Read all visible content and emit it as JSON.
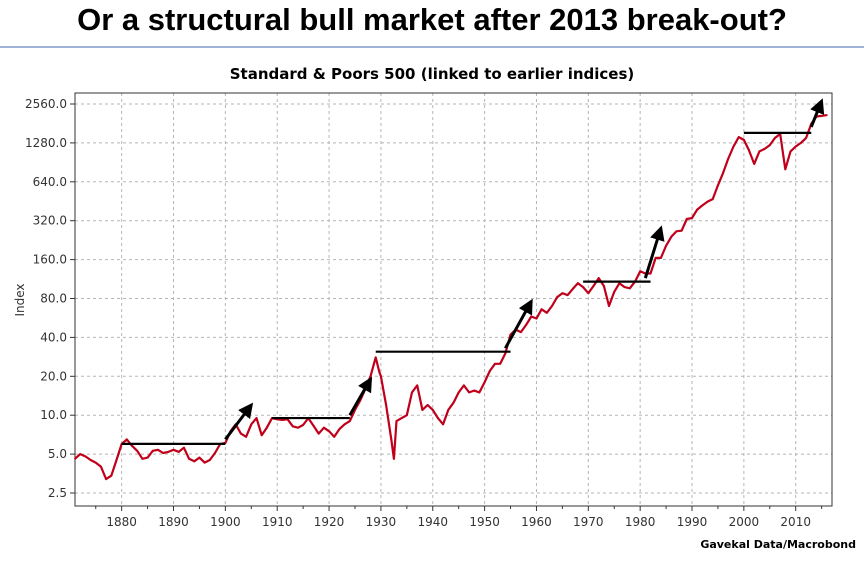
{
  "headline": "Or a structural bull market after 2013 break-out?",
  "source": "Gavekal Data/Macrobond",
  "colors": {
    "line": "#c0001a",
    "annotation": "#000000",
    "grid": "#b5b5b5",
    "rule": "#9fb3d6"
  },
  "chart_data": {
    "type": "line",
    "title": "Standard & Poors 500  (linked to earlier indices)",
    "xlabel": "",
    "ylabel": "Index",
    "yscale": "log2",
    "xlim": [
      1871,
      2017
    ],
    "ylim": [
      2.5,
      2560
    ],
    "grid": true,
    "legend": "none",
    "xticks": [
      "1880",
      "1890",
      "1900",
      "1910",
      "1920",
      "1930",
      "1940",
      "1950",
      "1960",
      "1970",
      "1980",
      "1990",
      "2000",
      "2010"
    ],
    "yticks": [
      "2.5",
      "5.0",
      "10.0",
      "20.0",
      "40.0",
      "80.0",
      "160.0",
      "320.0",
      "640.0",
      "1280.0",
      "2560.0"
    ],
    "series": [
      {
        "x": [
          1871,
          1872,
          1873,
          1874,
          1875,
          1876,
          1877,
          1878,
          1879,
          1880,
          1881,
          1882,
          1883,
          1884,
          1885,
          1886,
          1887,
          1888,
          1889,
          1890,
          1891,
          1892,
          1893,
          1894,
          1895,
          1896,
          1897,
          1898,
          1899,
          1900,
          1901,
          1902,
          1903,
          1904,
          1905,
          1906,
          1907,
          1908,
          1909,
          1910,
          1911,
          1912,
          1913,
          1914,
          1915,
          1916,
          1917,
          1918,
          1919,
          1920,
          1921,
          1922,
          1923,
          1924,
          1925,
          1926,
          1927,
          1928,
          1929,
          1929.7,
          1930,
          1931,
          1932,
          1932.5,
          1933,
          1934,
          1935,
          1936,
          1937,
          1938,
          1939,
          1940,
          1941,
          1942,
          1943,
          1944,
          1945,
          1946,
          1947,
          1948,
          1949,
          1950,
          1951,
          1952,
          1953,
          1954,
          1955,
          1956,
          1957,
          1958,
          1959,
          1960,
          1961,
          1962,
          1963,
          1964,
          1965,
          1966,
          1967,
          1968,
          1969,
          1970,
          1971,
          1972,
          1973,
          1974,
          1975,
          1976,
          1977,
          1978,
          1979,
          1980,
          1981,
          1982,
          1983,
          1984,
          1985,
          1986,
          1987,
          1988,
          1989,
          1990,
          1991,
          1992,
          1993,
          1994,
          1995,
          1996,
          1997,
          1998,
          1999,
          2000,
          2001,
          2002,
          2003,
          2004,
          2005,
          2006,
          2007,
          2008,
          2009,
          2010,
          2011,
          2012,
          2013,
          2014,
          2015,
          2016
        ],
        "values": [
          4.6,
          5.0,
          4.8,
          4.5,
          4.3,
          4.0,
          3.2,
          3.4,
          4.5,
          6.0,
          6.5,
          5.8,
          5.3,
          4.6,
          4.7,
          5.3,
          5.4,
          5.1,
          5.2,
          5.4,
          5.2,
          5.6,
          4.6,
          4.4,
          4.7,
          4.3,
          4.5,
          5.1,
          6.0,
          6.1,
          7.5,
          8.5,
          7.2,
          6.8,
          8.5,
          9.5,
          7.0,
          8.0,
          9.5,
          9.3,
          9.2,
          9.3,
          8.2,
          8.0,
          8.4,
          9.5,
          8.3,
          7.2,
          8.0,
          7.5,
          6.8,
          7.8,
          8.5,
          9.0,
          11.0,
          13.0,
          16.0,
          20.0,
          28.0,
          21.5,
          20.0,
          12.0,
          6.5,
          4.6,
          9.0,
          9.5,
          10.0,
          15.0,
          17.0,
          11.0,
          12.0,
          11.0,
          9.5,
          8.5,
          11.0,
          12.5,
          15.0,
          17.0,
          15.0,
          15.5,
          15.0,
          18.0,
          22.0,
          25.0,
          25.0,
          30.0,
          42.0,
          46.0,
          44.0,
          50.0,
          58.0,
          56.0,
          66.0,
          62.0,
          70.0,
          82.0,
          88.0,
          85.0,
          95.0,
          105.0,
          98.0,
          88.0,
          100.0,
          115.0,
          100.0,
          70.0,
          90.0,
          105.0,
          98.0,
          96.0,
          108.0,
          130.0,
          125.0,
          125.0,
          165.0,
          165.0,
          205.0,
          240.0,
          265.0,
          268.0,
          330.0,
          335.0,
          390.0,
          420.0,
          450.0,
          470.0,
          600.0,
          750.0,
          970.0,
          1200.0,
          1420.0,
          1350.0,
          1120.0,
          880.0,
          1100.0,
          1150.0,
          1230.0,
          1400.0,
          1500.0,
          800.0,
          1100.0,
          1200.0,
          1280.0,
          1400.0,
          1800.0,
          2050.0,
          2070.0,
          2100.0
        ]
      }
    ],
    "annotations": [
      {
        "type": "resistance",
        "x": [
          1880,
          1900
        ],
        "y": 6.0
      },
      {
        "type": "breakout",
        "x": [
          1900,
          1905
        ],
        "y": [
          6.5,
          12.0
        ]
      },
      {
        "type": "resistance",
        "x": [
          1909,
          1924
        ],
        "y": 9.5
      },
      {
        "type": "breakout",
        "x": [
          1924,
          1928
        ],
        "y": [
          10.0,
          19.0
        ]
      },
      {
        "type": "resistance",
        "x": [
          1929,
          1955
        ],
        "y": 31.0
      },
      {
        "type": "breakout",
        "x": [
          1954,
          1959
        ],
        "y": [
          33.0,
          76.0
        ]
      },
      {
        "type": "resistance",
        "x": [
          1969,
          1982
        ],
        "y": 108.0
      },
      {
        "type": "breakout",
        "x": [
          1981,
          1984
        ],
        "y": [
          115.0,
          280.0
        ]
      },
      {
        "type": "resistance",
        "x": [
          2000,
          2013
        ],
        "y": 1530.0
      },
      {
        "type": "breakout",
        "x": [
          2013,
          2015
        ],
        "y": [
          1700.0,
          2700.0
        ]
      }
    ]
  }
}
